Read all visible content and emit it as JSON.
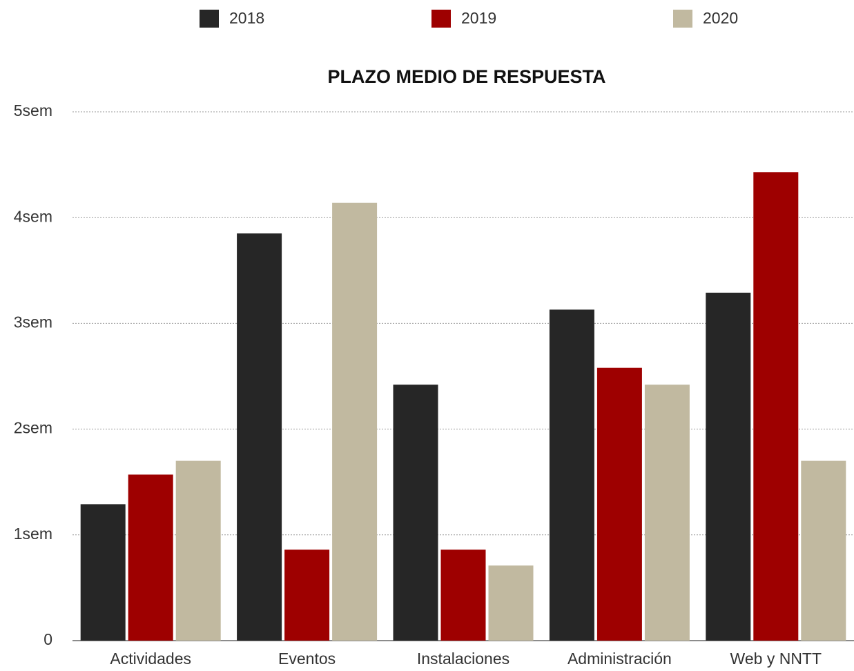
{
  "chart_data": {
    "type": "bar",
    "title": "PLAZO MEDIO DE RESPUESTA",
    "categories": [
      "Actividades",
      "Eventos",
      "Instalaciones",
      "Administración",
      "Web y NNTT"
    ],
    "series": [
      {
        "name": "2018",
        "color": "#262626",
        "values": [
          1.29,
          3.85,
          2.42,
          3.13,
          3.29
        ]
      },
      {
        "name": "2019",
        "color": "#9e0000",
        "values": [
          1.57,
          0.86,
          0.86,
          2.58,
          4.43
        ]
      },
      {
        "name": "2020",
        "color": "#c1b9a0",
        "values": [
          1.7,
          4.14,
          0.71,
          2.42,
          1.7
        ]
      }
    ],
    "ylim": [
      0,
      5
    ],
    "yticks": [
      0,
      {
        "value": 1,
        "label": "1sem"
      },
      {
        "value": 2,
        "label": "2sem"
      },
      {
        "value": 3,
        "label": "3sem"
      },
      {
        "value": 4,
        "label": "4sem"
      },
      {
        "value": 5,
        "label": "5sem"
      }
    ],
    "grid": true,
    "legend": "top"
  }
}
